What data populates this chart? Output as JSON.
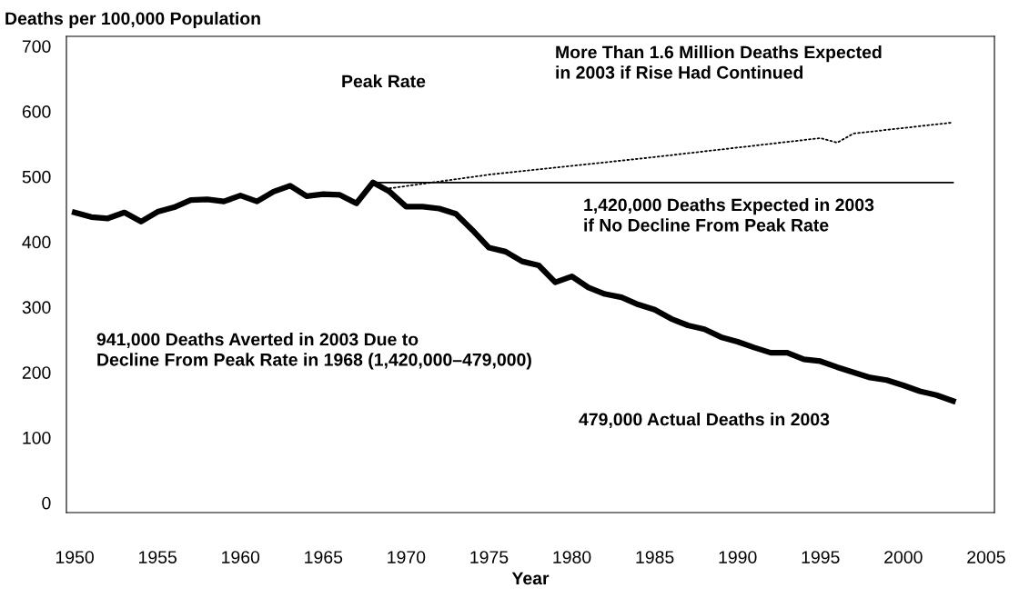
{
  "chart_data": {
    "type": "line",
    "title": "Deaths per 100,000 Population",
    "xlabel": "Year",
    "xlim": [
      1949.5,
      2005.5
    ],
    "xticks": [
      1950,
      1955,
      1960,
      1965,
      1970,
      1975,
      1980,
      1985,
      1990,
      1995,
      2000,
      2005
    ],
    "ylim": [
      -15,
      715
    ],
    "yticks": [
      0,
      100,
      200,
      300,
      400,
      500,
      600,
      700
    ],
    "grid": false,
    "marker": "none",
    "series": [
      {
        "color": "#000000",
        "line_style": "solid",
        "x": [
          1950,
          1951,
          1952,
          1953,
          1954,
          1955,
          1956,
          1957,
          1958,
          1959,
          1960,
          1961,
          1962,
          1963,
          1964,
          1965,
          1966,
          1967,
          1968,
          1969,
          1970,
          1971,
          1972,
          1973,
          1974,
          1975,
          1976,
          1977,
          1978,
          1979,
          1980,
          1981,
          1982,
          1983,
          1984,
          1985,
          1986,
          1987,
          1988,
          1989,
          1990,
          1991,
          1992,
          1993,
          1994,
          1995,
          1996,
          1997,
          1998,
          1999,
          2000,
          2001,
          2002,
          2003
        ],
        "values": [
          445,
          438,
          436,
          445,
          431,
          446,
          453,
          464,
          465,
          462,
          471,
          462,
          477,
          486,
          470,
          473,
          472,
          459,
          491,
          477,
          454,
          454,
          451,
          443,
          418,
          391,
          385,
          370,
          364,
          338,
          347,
          330,
          320,
          315,
          304,
          296,
          282,
          272,
          266,
          254,
          247,
          238,
          230,
          230,
          220,
          217,
          208,
          200,
          192,
          188,
          180,
          171,
          165,
          156
        ]
      },
      {
        "color": "#000000",
        "line_style": "solid",
        "x": [
          1968,
          2003
        ],
        "values": [
          491,
          491
        ]
      },
      {
        "color": "#000000",
        "line_style": "dotted",
        "x": [
          1969,
          1975,
          1985,
          1995,
          1996,
          1997,
          2003
        ],
        "values": [
          482,
          503,
          530,
          559,
          552,
          566,
          583
        ]
      }
    ],
    "annotations": [
      "Peak Rate",
      "More Than 1.6 Million Deaths Expected\nin 2003 if Rise Had Continued",
      "1,420,000 Deaths Expected in 2003\nif No Decline From Peak Rate",
      "941,000 Deaths Averted in 2003 Due to\nDecline From Peak Rate in 1968 (1,420,000–479,000)",
      "479,000 Actual Deaths in 2003"
    ]
  }
}
